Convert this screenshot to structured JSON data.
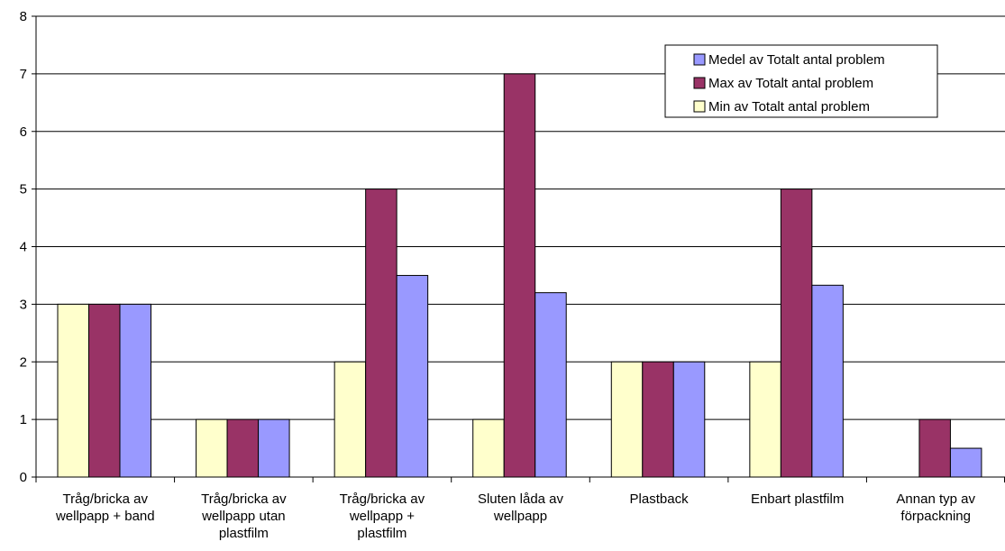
{
  "chart_data": {
    "type": "bar",
    "title": "",
    "xlabel": "",
    "ylabel": "",
    "ylim": [
      0,
      8
    ],
    "yticks": [
      "0",
      "1",
      "2",
      "3",
      "4",
      "5",
      "6",
      "7",
      "8"
    ],
    "grid": true,
    "legend_position": "top-right",
    "categories": [
      [
        "Tråg/bricka av",
        "wellpapp + band"
      ],
      [
        "Tråg/bricka av",
        "wellpapp utan",
        "plastfilm"
      ],
      [
        "Tråg/bricka av",
        "wellpapp +",
        "plastfilm"
      ],
      [
        "Sluten låda av",
        "wellpapp"
      ],
      [
        "Plastback"
      ],
      [
        "Enbart plastfilm"
      ],
      [
        "Annan typ av",
        "förpackning"
      ]
    ],
    "series": [
      {
        "name": "Min av Totalt antal problem",
        "color": "#ffffcc",
        "values": [
          3,
          1,
          2,
          1,
          2,
          2,
          0
        ]
      },
      {
        "name": "Max av Totalt antal problem",
        "color": "#993366",
        "values": [
          3,
          1,
          5,
          7,
          2,
          5,
          1
        ]
      },
      {
        "name": "Medel av Totalt antal problem",
        "color": "#9999ff",
        "values": [
          3,
          1,
          3.5,
          3.2,
          2,
          3.33,
          0.5
        ]
      }
    ],
    "legend_order": [
      2,
      1,
      0
    ]
  }
}
